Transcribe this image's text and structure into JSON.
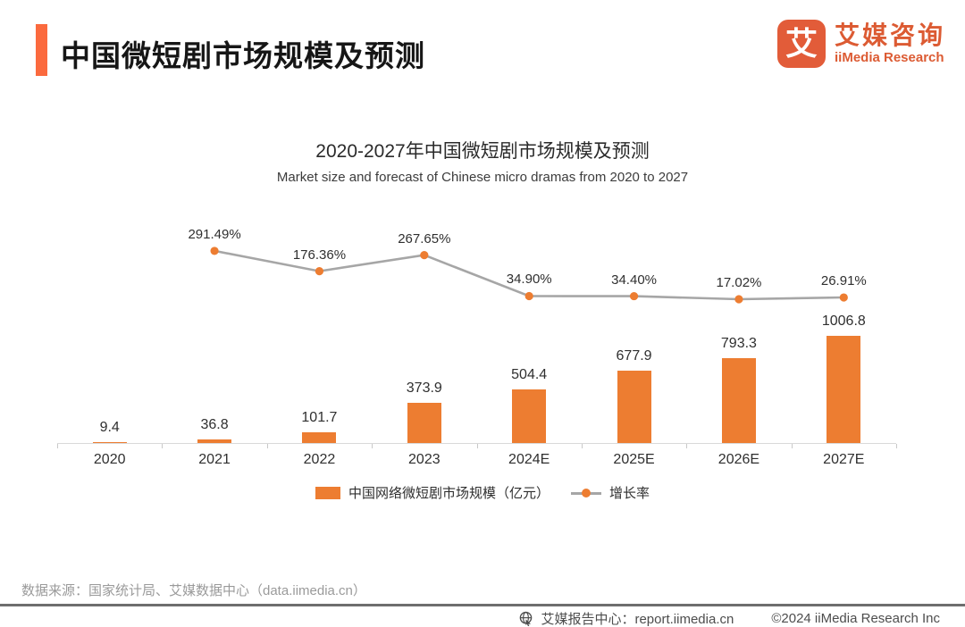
{
  "header": {
    "title": "中国微短剧市场规模及预测",
    "logo": {
      "icon_char": "艾",
      "name_cn": "艾媒咨询",
      "name_en": "iiMedia Research"
    }
  },
  "chart_data": {
    "type": "bar",
    "title": "2020-2027年中国微短剧市场规模及预测",
    "subtitle": "Market size and forecast of Chinese micro dramas from 2020 to 2027",
    "categories": [
      "2020",
      "2021",
      "2022",
      "2023",
      "2024E",
      "2025E",
      "2026E",
      "2027E"
    ],
    "series": [
      {
        "name": "中国网络微短剧市场规模（亿元）",
        "type": "bar",
        "values": [
          9.4,
          36.8,
          101.7,
          373.9,
          504.4,
          677.9,
          793.3,
          1006.8
        ],
        "value_labels": [
          "9.4",
          "36.8",
          "101.7",
          "373.9",
          "504.4",
          "677.9",
          "793.3",
          "1006.8"
        ],
        "color": "#ED7D31"
      },
      {
        "name": "增长率",
        "type": "line",
        "values": [
          null,
          291.49,
          176.36,
          267.65,
          34.9,
          34.4,
          17.02,
          26.91
        ],
        "value_labels": [
          "",
          "291.49%",
          "176.36%",
          "267.65%",
          "34.90%",
          "34.40%",
          "17.02%",
          "26.91%"
        ],
        "line_color": "#A6A6A6",
        "marker_color": "#ED7D31"
      }
    ],
    "legend_position": "bottom",
    "grid": false,
    "axis_color": "#D9D9D9"
  },
  "footer": {
    "source": "数据来源：国家统计局、艾媒数据中心（data.iimedia.cn）"
  },
  "bottombar": {
    "report_center": "艾媒报告中心：report.iimedia.cn",
    "copyright": "©2024  iiMedia Research Inc"
  }
}
